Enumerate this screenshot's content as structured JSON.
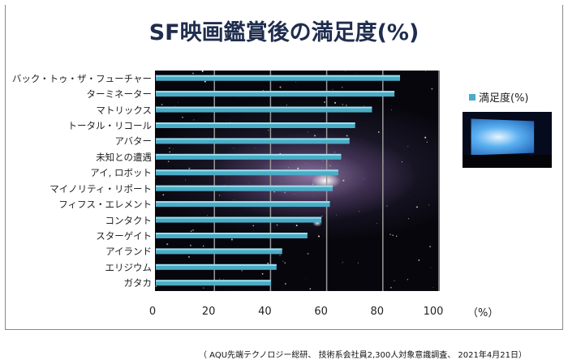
{
  "chart_data": {
    "type": "bar",
    "orientation": "horizontal",
    "title": "SF映画鑑賞後の満足度(%)",
    "categories": [
      "バック・トゥ・ザ・フューチャー",
      "ターミネーター",
      "マトリックス",
      "トータル・リコール",
      "アバター",
      "未知との遭遇",
      "アイ, ロボット",
      "マイノリティ・リポート",
      "フィフス・エレメント",
      "コンタクト",
      "スターゲイト",
      "アイランド",
      "エリジウム",
      "ガタカ"
    ],
    "series": [
      {
        "name": "満足度(%)",
        "values": [
          87,
          85,
          77,
          71,
          69,
          66,
          65,
          63,
          62,
          59,
          54,
          45,
          43,
          41
        ],
        "color": "#4bacc6"
      }
    ],
    "xlim": [
      0,
      100
    ],
    "xticks": [
      "0",
      "20",
      "40",
      "60",
      "80",
      "100"
    ],
    "xunit": "（%）",
    "grid": true,
    "legend": "right",
    "background": "galaxy image"
  },
  "source": "（ AQU先端テクノロジー総研、 技術系会社員2,300人対象意識調査、 2021年4月21日）"
}
